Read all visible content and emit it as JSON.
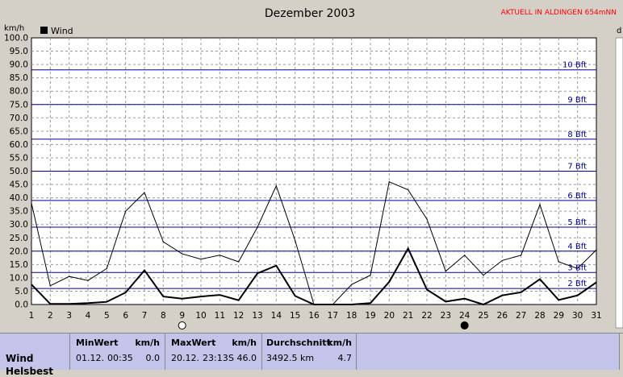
{
  "header": {
    "title": "Dezember 2003",
    "station": "AKTUELL IN ALDINGEN 654mNN",
    "left_unit": "km/h",
    "right_unit": "d"
  },
  "colors": {
    "plot_bg": "#ffffff",
    "grid": "#999999",
    "bft_line": "#000099",
    "bft_text": "#000099",
    "series": "#000000",
    "station": "#ff0000",
    "panel_bg": "#c4c4ea"
  },
  "chart_data": {
    "type": "line",
    "title": "Dezember 2003",
    "ylabel": "km/h",
    "xlabel": "",
    "ylim": [
      0,
      100
    ],
    "xlim": [
      1,
      31
    ],
    "yticks": [
      "0.0",
      "5.0",
      "10.0",
      "15.0",
      "20.0",
      "25.0",
      "30.0",
      "35.0",
      "40.0",
      "45.0",
      "50.0",
      "55.0",
      "60.0",
      "65.0",
      "70.0",
      "75.0",
      "80.0",
      "85.0",
      "90.0",
      "95.0",
      "100.0"
    ],
    "xticks": [
      "1",
      "2",
      "3",
      "4",
      "5",
      "6",
      "7",
      "8",
      "9",
      "10",
      "11",
      "12",
      "13",
      "14",
      "15",
      "16",
      "17",
      "18",
      "19",
      "20",
      "21",
      "22",
      "23",
      "24",
      "25",
      "26",
      "27",
      "28",
      "29",
      "30",
      "31"
    ],
    "grid": true,
    "legend": "top-left",
    "beaufort": [
      {
        "label": "2 Bft",
        "value": 6
      },
      {
        "label": "3 Bft",
        "value": 12
      },
      {
        "label": "4 Bft",
        "value": 20
      },
      {
        "label": "5 Bft",
        "value": 29
      },
      {
        "label": "6 Bft",
        "value": 39
      },
      {
        "label": "7 Bft",
        "value": 50
      },
      {
        "label": "8 Bft",
        "value": 62
      },
      {
        "label": "9 Bft",
        "value": 75
      },
      {
        "label": "10 Bft",
        "value": 88
      }
    ],
    "moon_phases": [
      {
        "day": 9,
        "phase": "full"
      },
      {
        "day": 24,
        "phase": "new"
      }
    ],
    "series": [
      {
        "name": "Wind",
        "style": "thick",
        "x": [
          1,
          2,
          3,
          4,
          5,
          6,
          7,
          8,
          9,
          10,
          11,
          12,
          13,
          14,
          15,
          16,
          17,
          18,
          19,
          20,
          21,
          22,
          23,
          24,
          25,
          26,
          27,
          28,
          29,
          30,
          31
        ],
        "values": [
          7.5,
          0.2,
          0.2,
          0.5,
          1,
          4.5,
          12.8,
          3,
          2.2,
          3,
          3.6,
          1.6,
          11.7,
          14.6,
          3.2,
          0,
          0,
          0,
          0.5,
          8.5,
          21,
          5.6,
          1.1,
          2.2,
          0,
          3.4,
          4.6,
          9.5,
          1.7,
          3.4,
          8.3
        ]
      },
      {
        "name": "",
        "style": "thin",
        "x": [
          1,
          2,
          3,
          4,
          5,
          6,
          7,
          8,
          9,
          10,
          11,
          12,
          13,
          14,
          15,
          16,
          17,
          18,
          19,
          20,
          21,
          22,
          23,
          24,
          25,
          26,
          27,
          28,
          29,
          30,
          31
        ],
        "values": [
          38,
          7,
          10.5,
          9,
          13.5,
          35,
          42,
          23.5,
          19,
          17,
          18.5,
          16,
          29,
          44.5,
          24,
          0,
          0,
          7.5,
          11,
          46,
          43,
          32,
          12.5,
          18.5,
          11,
          16.5,
          18.5,
          37.5,
          16,
          13.5,
          20.5
        ]
      }
    ]
  },
  "footer": {
    "row_label": "Wind",
    "row_label_2": "Helsbest",
    "min": {
      "title": "MinWert",
      "unit": "km/h",
      "date": "01.12.",
      "time": "00:35",
      "value": "0.0"
    },
    "max": {
      "title": "MaxWert",
      "unit": "km/h",
      "date": "20.12.",
      "time": "23:13",
      "dir": "S",
      "value": "46.0"
    },
    "avg": {
      "title": "Durchschnitt",
      "unit": "km/h",
      "dist": "3492.5 km",
      "value": "4.7"
    }
  }
}
